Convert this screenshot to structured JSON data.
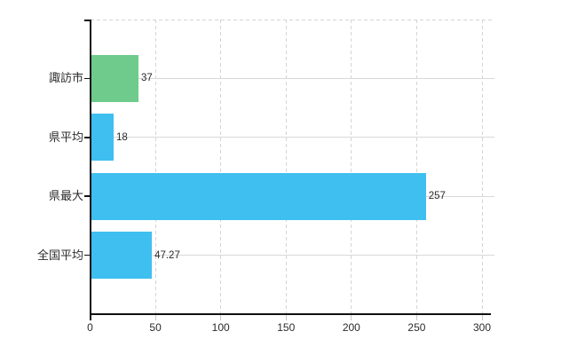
{
  "chart_data": {
    "type": "bar",
    "orientation": "horizontal",
    "title": "",
    "xlabel": "",
    "ylabel": "",
    "categories": [
      "諏訪市",
      "県平均",
      "県最大",
      "全国平均"
    ],
    "values": [
      37,
      18,
      257,
      47.27
    ],
    "value_labels": [
      "37",
      "18",
      "257",
      "47.27"
    ],
    "bar_colors": [
      "#6ECB8C",
      "#3FBFF0",
      "#3FBFF0",
      "#3FBFF0"
    ],
    "x_ticks": [
      0,
      50,
      100,
      150,
      200,
      250,
      300
    ],
    "x_tick_labels": [
      "0",
      "50",
      "100",
      "150",
      "200",
      "250",
      "300"
    ],
    "xlim": [
      0,
      300
    ],
    "grid": true,
    "legend": false
  },
  "colors": {
    "green_bar": "#6ECB8C",
    "blue_bar": "#3FBFF0",
    "gridline": "#d8d8d8",
    "axis": "#111111",
    "text": "#2b2b2b",
    "background": "#ffffff"
  }
}
